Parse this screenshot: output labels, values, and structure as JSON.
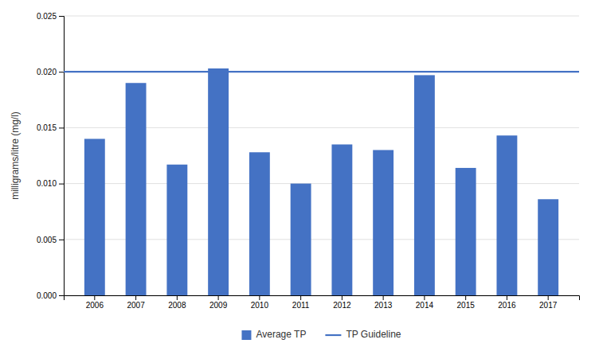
{
  "chart_data": {
    "type": "bar",
    "y_label": "milligrams/litre (mg/l)",
    "categories": [
      "2006",
      "2007",
      "2008",
      "2009",
      "2010",
      "2011",
      "2012",
      "2013",
      "2014",
      "2015",
      "2016",
      "2017"
    ],
    "series": [
      {
        "name": "Average TP",
        "type": "bar",
        "color": "#4472C4",
        "values": [
          0.014,
          0.019,
          0.0117,
          0.0203,
          0.0128,
          0.01,
          0.0135,
          0.013,
          0.0197,
          0.0114,
          0.0143,
          0.0086
        ]
      },
      {
        "name": "TP Guideline",
        "type": "hline",
        "color": "#4472C4",
        "value": 0.02
      }
    ],
    "ylim": [
      0,
      0.025
    ],
    "yticks": [
      {
        "value": 0.0,
        "label": "0.000"
      },
      {
        "value": 0.005,
        "label": "0.005"
      },
      {
        "value": 0.01,
        "label": "0.010"
      },
      {
        "value": 0.015,
        "label": "0.015"
      },
      {
        "value": 0.02,
        "label": "0.020"
      },
      {
        "value": 0.025,
        "label": "0.025"
      }
    ],
    "grid": true,
    "legend": "bottom"
  }
}
